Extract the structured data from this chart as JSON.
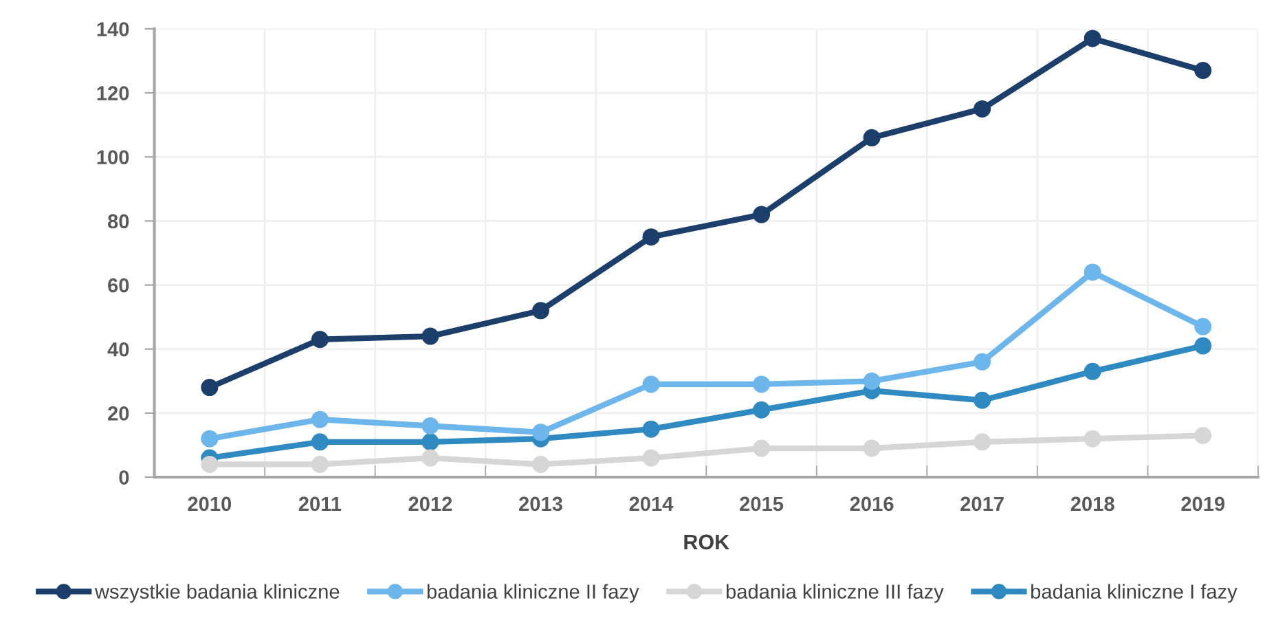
{
  "chart_data": {
    "type": "line",
    "xlabel": "ROK",
    "categories": [
      "2010",
      "2011",
      "2012",
      "2013",
      "2014",
      "2015",
      "2016",
      "2017",
      "2018",
      "2019"
    ],
    "series": [
      {
        "name": "wszystkie badania kliniczne",
        "color": "#1b3e6b",
        "values": [
          28,
          43,
          44,
          52,
          75,
          82,
          106,
          115,
          137,
          127
        ]
      },
      {
        "name": "badania kliniczne II fazy",
        "color": "#6cb6ec",
        "values": [
          12,
          18,
          16,
          14,
          29,
          29,
          30,
          36,
          64,
          47
        ]
      },
      {
        "name": "badania kliniczne III fazy",
        "color": "#d6d6d6",
        "values": [
          4,
          4,
          6,
          4,
          6,
          9,
          9,
          11,
          12,
          13
        ]
      },
      {
        "name": "badania kliniczne I fazy",
        "color": "#2e8ac0",
        "values": [
          6,
          11,
          11,
          12,
          15,
          21,
          27,
          24,
          33,
          41
        ]
      }
    ],
    "ylim": [
      0,
      140
    ],
    "yticks": [
      0,
      20,
      40,
      60,
      80,
      100,
      120,
      140
    ],
    "grid": true,
    "legend": "bottom",
    "marker": "circle",
    "line_style": "solid"
  }
}
